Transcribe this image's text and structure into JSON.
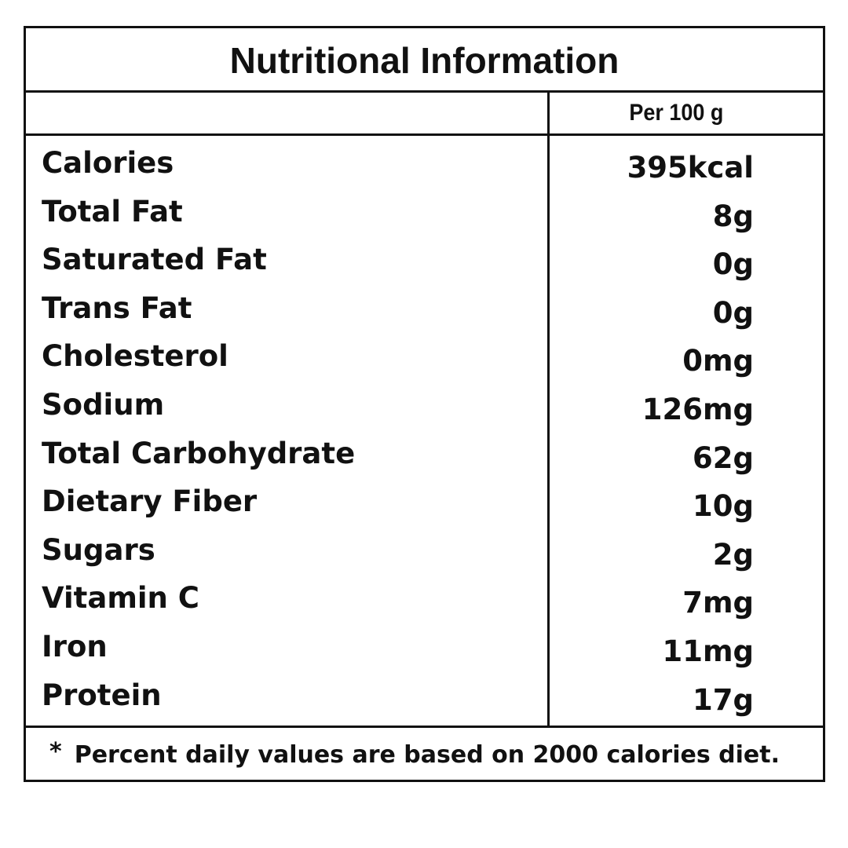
{
  "label": {
    "title": "Nutritional Information",
    "per_label": "Per 100 g",
    "rows": [
      {
        "nutrient": "Calories",
        "amount": "395kcal"
      },
      {
        "nutrient": "Total Fat",
        "amount": "8g"
      },
      {
        "nutrient": "Saturated Fat",
        "amount": "0g"
      },
      {
        "nutrient": "Trans Fat",
        "amount": "0g"
      },
      {
        "nutrient": "Cholesterol",
        "amount": "0mg"
      },
      {
        "nutrient": "Sodium",
        "amount": "126mg"
      },
      {
        "nutrient": "Total Carbohydrate",
        "amount": "62g"
      },
      {
        "nutrient": "Dietary Fiber",
        "amount": "10g"
      },
      {
        "nutrient": "Sugars",
        "amount": "2g"
      },
      {
        "nutrient": "Vitamin C",
        "amount": "7mg"
      },
      {
        "nutrient": "Iron",
        "amount": "11mg"
      },
      {
        "nutrient": "Protein",
        "amount": "17g"
      }
    ],
    "footnote_mark": "*",
    "footnote": "Percent daily values are based on 2000 calories diet."
  },
  "colors": {
    "text": "#111111",
    "border": "#111111",
    "background": "#ffffff"
  }
}
